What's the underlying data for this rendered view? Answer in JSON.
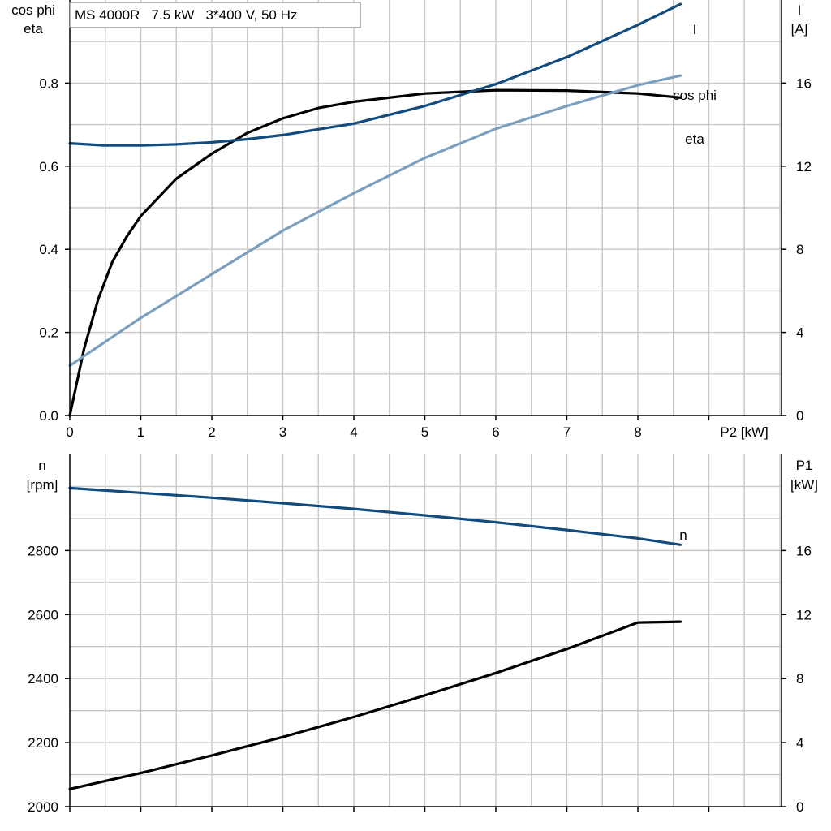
{
  "colors": {
    "background": "#ffffff",
    "grid": "#c8c8c8",
    "axis": "#000000",
    "eta": "#000000",
    "I": "#134b7f",
    "cos_phi": "#7a9fbf",
    "n": "#134b7f",
    "P1": "#000000"
  },
  "chart_data": [
    {
      "type": "line",
      "title": "MS 4000R   7.5 kW   3*400 V, 50 Hz",
      "xlabel": "P2 [kW]",
      "xlim": [
        0,
        10
      ],
      "xticks": [
        0,
        1,
        2,
        3,
        4,
        5,
        6,
        7,
        8
      ],
      "grid": true,
      "left_axis": {
        "label_lines": [
          "cos phi",
          "eta"
        ],
        "ylim": [
          0,
          1.0
        ],
        "ticks": [
          0.0,
          0.2,
          0.4,
          0.6,
          0.8
        ],
        "tick_labels": [
          "0.0",
          "0.2",
          "0.4",
          "0.6",
          "0.8"
        ]
      },
      "right_axis": {
        "label_lines": [
          "I",
          "[A]"
        ],
        "ylim": [
          0,
          20
        ],
        "ticks": [
          0,
          4,
          8,
          12,
          16
        ],
        "tick_labels": [
          "0",
          "4",
          "8",
          "12",
          "16"
        ]
      },
      "series": [
        {
          "name": "eta",
          "axis": "left",
          "color_key": "eta",
          "x": [
            0,
            0.2,
            0.4,
            0.6,
            0.8,
            1.0,
            1.5,
            2.0,
            2.5,
            3.0,
            3.5,
            4.0,
            5.0,
            6.0,
            7.0,
            8.0,
            8.6
          ],
          "y": [
            0.0,
            0.16,
            0.28,
            0.37,
            0.43,
            0.48,
            0.57,
            0.63,
            0.68,
            0.715,
            0.74,
            0.755,
            0.775,
            0.783,
            0.782,
            0.775,
            0.765
          ]
        },
        {
          "name": "I",
          "axis": "right",
          "color_key": "I",
          "x": [
            0,
            0.5,
            1.0,
            1.5,
            2.0,
            2.5,
            3.0,
            4.0,
            5.0,
            6.0,
            7.0,
            8.0,
            8.6
          ],
          "y": [
            13.1,
            13.0,
            13.0,
            13.05,
            13.15,
            13.3,
            13.5,
            14.05,
            14.9,
            15.95,
            17.25,
            18.8,
            19.8
          ]
        },
        {
          "name": "cos phi",
          "axis": "left",
          "color_key": "cos_phi",
          "x": [
            0,
            1,
            2,
            3,
            4,
            5,
            6,
            7,
            8,
            8.6
          ],
          "y": [
            0.12,
            0.235,
            0.34,
            0.445,
            0.535,
            0.62,
            0.69,
            0.745,
            0.795,
            0.818
          ]
        }
      ]
    },
    {
      "type": "line",
      "title": "",
      "xlabel": "",
      "xlim": [
        0,
        10
      ],
      "xticks": [
        0,
        1,
        2,
        3,
        4,
        5,
        6,
        7,
        8
      ],
      "grid": true,
      "left_axis": {
        "label_lines": [
          "n",
          "[rpm]"
        ],
        "ylim": [
          2000,
          3100
        ],
        "ticks": [
          2000,
          2200,
          2400,
          2600,
          2800
        ],
        "tick_labels": [
          "2000",
          "2200",
          "2400",
          "2600",
          "2800"
        ]
      },
      "right_axis": {
        "label_lines": [
          "P1",
          "[kW]"
        ],
        "ylim": [
          0,
          22
        ],
        "ticks": [
          0,
          4,
          8,
          12,
          16
        ],
        "tick_labels": [
          "0",
          "4",
          "8",
          "12",
          "16"
        ]
      },
      "series": [
        {
          "name": "n",
          "axis": "left",
          "color_key": "n",
          "x": [
            0,
            1,
            2,
            3,
            4,
            5,
            6,
            7,
            8,
            8.6
          ],
          "y": [
            2995,
            2980,
            2965,
            2948,
            2930,
            2910,
            2888,
            2864,
            2838,
            2818
          ]
        },
        {
          "name": "",
          "axis": "right",
          "color_key": "P1",
          "x": [
            0,
            1,
            2,
            3,
            4,
            5,
            6,
            7,
            8,
            8.6
          ],
          "y": [
            1.1,
            2.1,
            3.2,
            4.35,
            5.6,
            6.95,
            8.35,
            9.85,
            11.5,
            11.55
          ]
        }
      ]
    }
  ]
}
